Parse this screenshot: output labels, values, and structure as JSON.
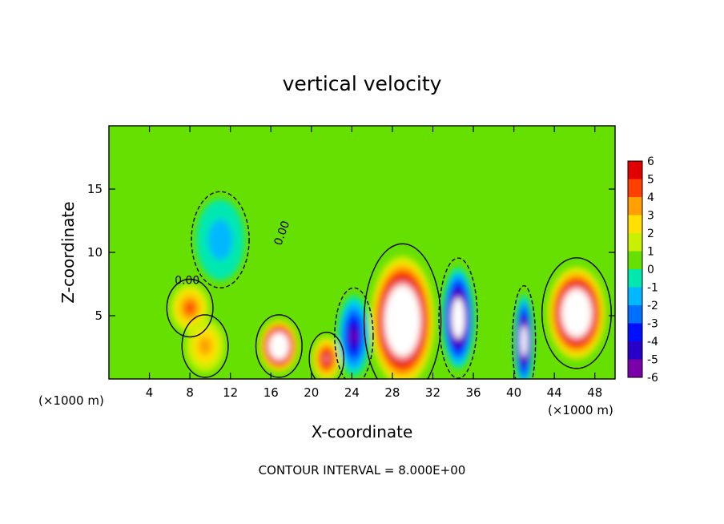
{
  "chart_data": {
    "type": "heatmap",
    "title": "vertical velocity",
    "xlabel": "X-coordinate",
    "ylabel": "Z-coordinate",
    "x_unit_left": "(×1000 m)",
    "x_unit_right": "(×1000 m)",
    "xlim": [
      0,
      50
    ],
    "ylim": [
      0,
      20
    ],
    "x_ticks": [
      4,
      8,
      12,
      16,
      20,
      24,
      28,
      32,
      36,
      40,
      44,
      48
    ],
    "y_ticks": [
      5,
      10,
      15
    ],
    "colorbar": {
      "ticks": [
        6,
        5,
        4,
        3,
        2,
        1,
        0,
        -1,
        -2,
        -3,
        -4,
        -5,
        -6
      ],
      "range": [
        -6,
        6
      ]
    },
    "contour_label": "0.00",
    "footer": "CONTOUR INTERVAL = 8.000E+00",
    "field_features": [
      {
        "x": 16.8,
        "z": 2.6,
        "value": 12,
        "sx": 1.2,
        "sz": 1.3
      },
      {
        "x": 21.5,
        "z": 1.6,
        "value": 6,
        "sx": 0.9,
        "sz": 1.1
      },
      {
        "x": 29.0,
        "z": 4.6,
        "value": 13,
        "sx": 2.0,
        "sz": 3.2
      },
      {
        "x": 34.5,
        "z": 4.8,
        "value": -10,
        "sx": 1.0,
        "sz": 2.5
      },
      {
        "x": 46.2,
        "z": 5.2,
        "value": 12,
        "sx": 1.8,
        "sz": 2.3
      },
      {
        "x": 41.0,
        "z": 3.0,
        "value": -9,
        "sx": 0.6,
        "sz": 2.3
      },
      {
        "x": 24.2,
        "z": 3.4,
        "value": -6,
        "sx": 1.0,
        "sz": 2.0
      },
      {
        "x": 8.0,
        "z": 5.6,
        "value": 4,
        "sx": 1.2,
        "sz": 1.2
      },
      {
        "x": 9.5,
        "z": 2.6,
        "value": 3,
        "sx": 1.2,
        "sz": 1.3
      },
      {
        "x": 11.0,
        "z": 11.0,
        "value": -2,
        "sx": 1.5,
        "sz": 2.0
      }
    ]
  }
}
